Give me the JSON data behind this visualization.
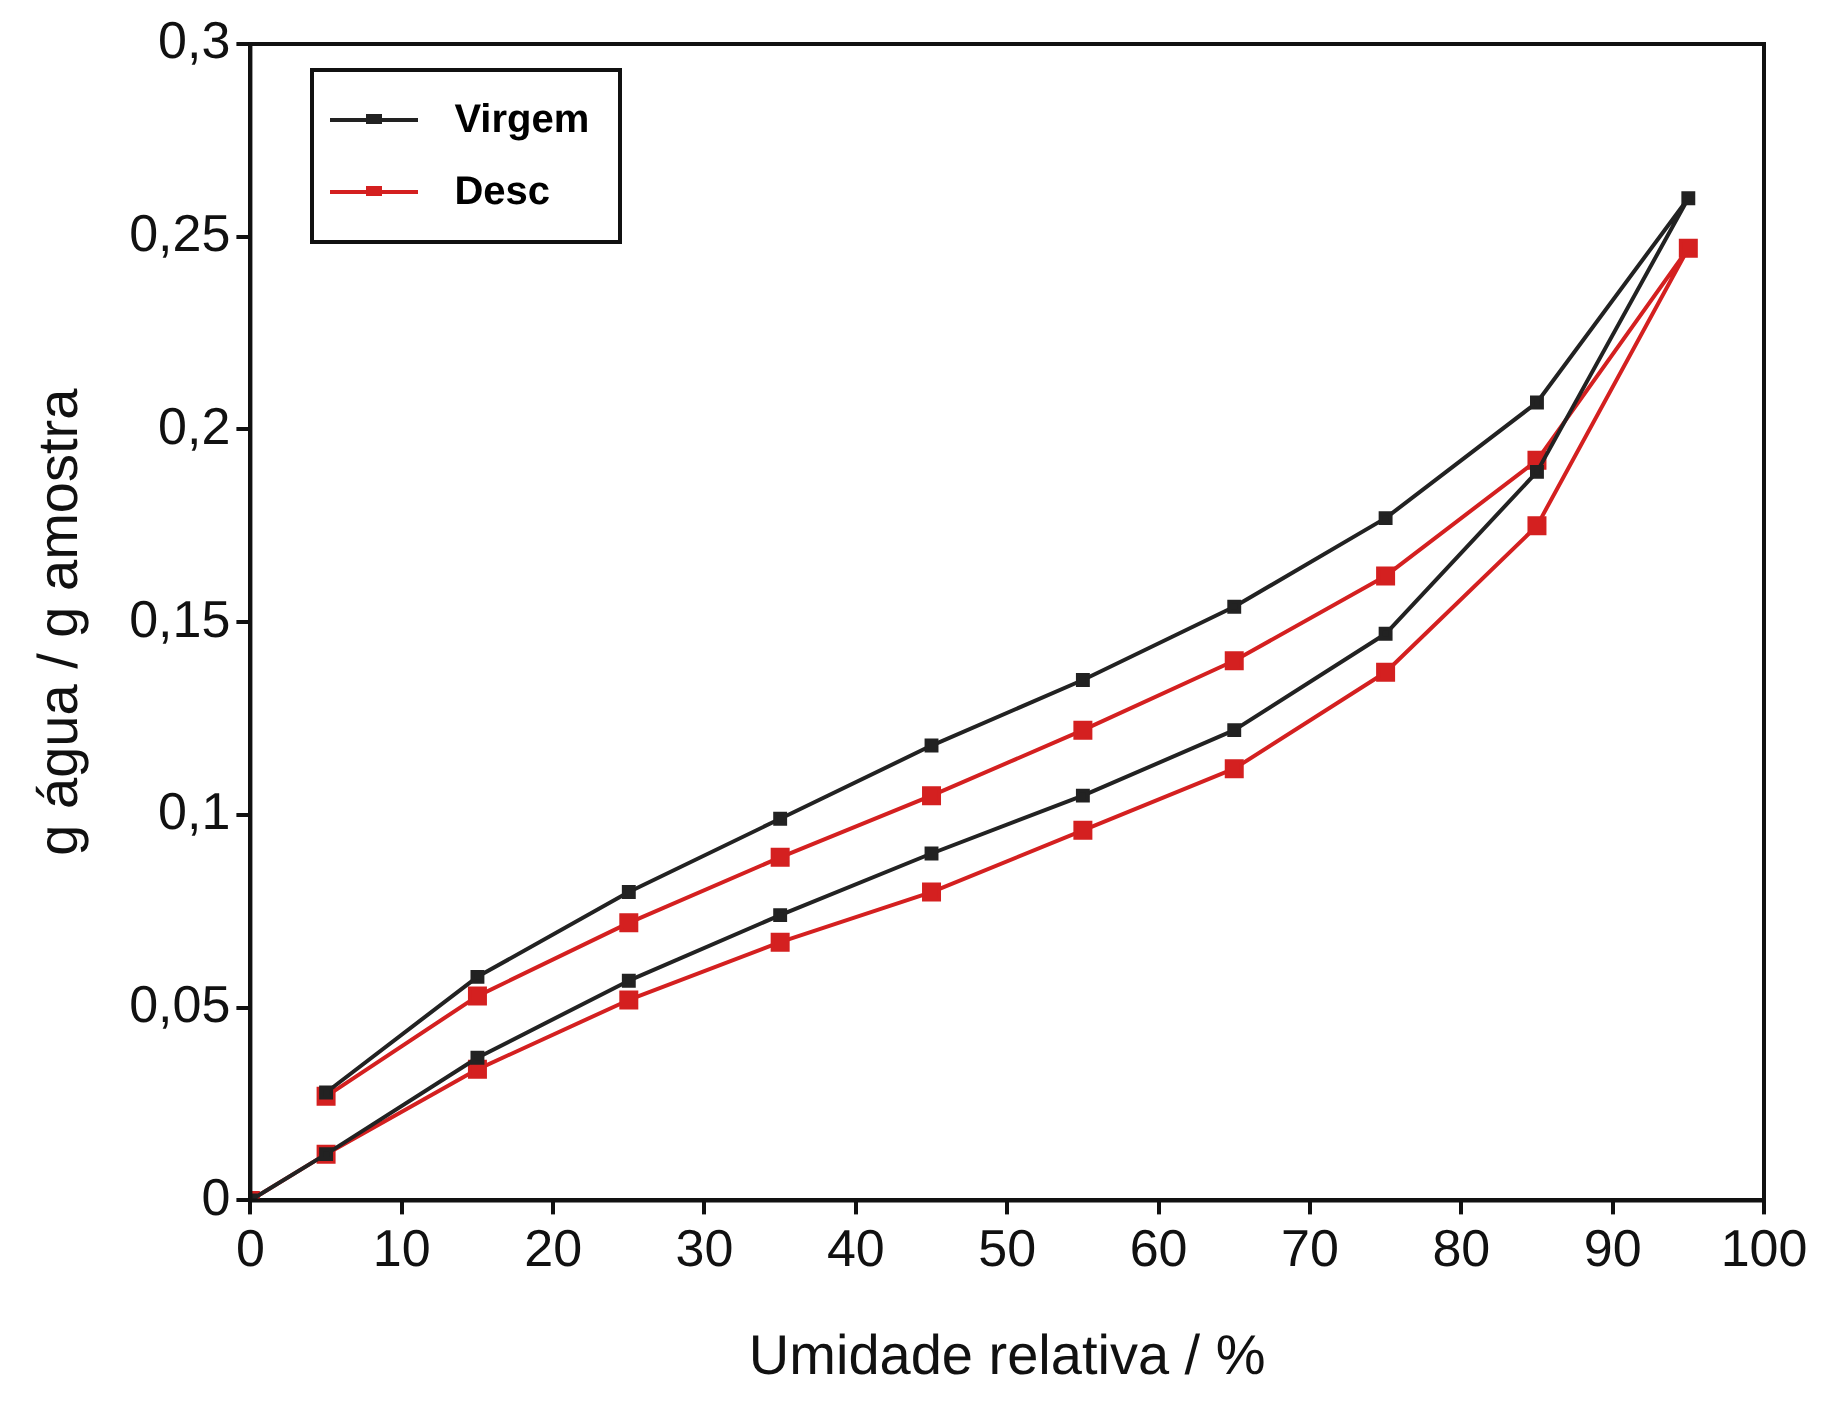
{
  "chart_data": {
    "type": "line",
    "xlabel": "Umidade relativa / %",
    "ylabel": "g água / g amostra",
    "xlim": [
      0,
      100
    ],
    "xticks": [
      0,
      10,
      20,
      30,
      40,
      50,
      60,
      70,
      80,
      90,
      100
    ],
    "ylim": [
      0,
      0.3
    ],
    "yticks": [
      {
        "value": 0,
        "label": "0"
      },
      {
        "value": 0.05,
        "label": "0,05"
      },
      {
        "value": 0.1,
        "label": "0,1"
      },
      {
        "value": 0.15,
        "label": "0,15"
      },
      {
        "value": 0.2,
        "label": "0,2"
      },
      {
        "value": 0.25,
        "label": "0,25"
      },
      {
        "value": 0.3,
        "label": "0,3"
      }
    ],
    "grid": false,
    "legend": "top left",
    "marker": "square",
    "line_style": "solid",
    "series": [
      {
        "name": "Virgem",
        "color": "#222222",
        "x": [
          0,
          5,
          15,
          25,
          35,
          45,
          55,
          65,
          75,
          85,
          95,
          85,
          75,
          65,
          55,
          45,
          35,
          25,
          15,
          5
        ],
        "values": [
          0,
          0.012,
          0.037,
          0.057,
          0.074,
          0.09,
          0.105,
          0.122,
          0.147,
          0.189,
          0.26,
          0.207,
          0.177,
          0.154,
          0.135,
          0.118,
          0.099,
          0.08,
          0.058,
          0.028
        ]
      },
      {
        "name": "Desc",
        "color": "#d42020",
        "x": [
          0,
          5,
          15,
          25,
          35,
          45,
          55,
          65,
          75,
          85,
          95,
          85,
          75,
          65,
          55,
          45,
          35,
          25,
          15,
          5
        ],
        "values": [
          0,
          0.012,
          0.034,
          0.052,
          0.067,
          0.08,
          0.096,
          0.112,
          0.137,
          0.175,
          0.247,
          0.192,
          0.162,
          0.14,
          0.122,
          0.105,
          0.089,
          0.072,
          0.053,
          0.027
        ]
      }
    ]
  }
}
